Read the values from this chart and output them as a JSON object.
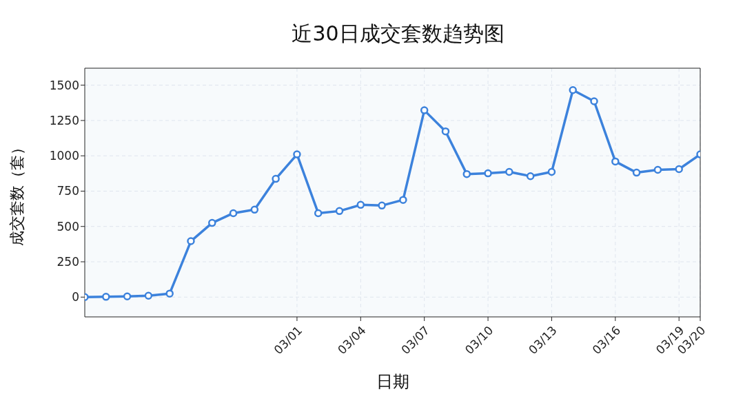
{
  "chart_data": {
    "type": "line",
    "title": "近30日成交套数趋势图",
    "xlabel": "日期",
    "ylabel": "成交套数（套）",
    "x": [
      "--02-19",
      "--02-20",
      "--02-21",
      "--02-22",
      "--02-23",
      "--02-24",
      "--02-25",
      "--02-26",
      "--02-27",
      "--02-28",
      "--03-01",
      "--03-02",
      "--03-03",
      "--03-04",
      "--03-05",
      "--03-06",
      "--03-07",
      "--03-08",
      "--03-09",
      "--03-10",
      "--03-11",
      "--03-12",
      "--03-13",
      "--03-14",
      "--03-15",
      "--03-16",
      "--03-17",
      "--03-18",
      "--03-19",
      "--03-20"
    ],
    "series": [
      {
        "color": "#3c82dc",
        "values": [
          0,
          2,
          5,
          10,
          25,
          396,
          525,
          594,
          619,
          837,
          1010,
          594,
          609,
          653,
          648,
          688,
          1322,
          1173,
          871,
          876,
          886,
          856,
          886,
          1465,
          1386,
          960,
          881,
          901,
          906,
          1010
        ]
      }
    ],
    "xlim": [
      "--02-19",
      "--03-20"
    ],
    "xticks": [
      {
        "value": "--03-01",
        "label": "03/01"
      },
      {
        "value": "--03-04",
        "label": "03/04"
      },
      {
        "value": "--03-07",
        "label": "03/07"
      },
      {
        "value": "--03-10",
        "label": "03/10"
      },
      {
        "value": "--03-13",
        "label": "03/13"
      },
      {
        "value": "--03-16",
        "label": "03/16"
      },
      {
        "value": "--03-19",
        "label": "03/19"
      },
      {
        "value": "--03-20",
        "label": "03/20"
      }
    ],
    "ylim": [
      -140,
      1620
    ],
    "yticks": [
      0,
      250,
      500,
      750,
      1000,
      1250,
      1500
    ],
    "grid": true,
    "marker": "circle",
    "line_style": "solid",
    "legend": false
  }
}
